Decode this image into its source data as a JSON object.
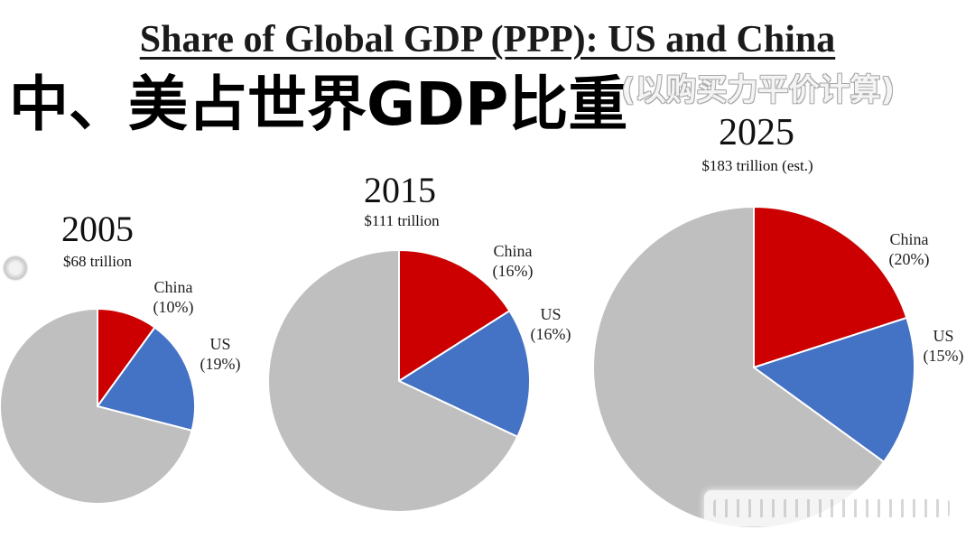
{
  "title": "Share of Global GDP (PPP): US and China",
  "overlay": {
    "heading": "中、美占世界GDP比重",
    "note": "(以购买力平价计算)"
  },
  "chart_data": [
    {
      "type": "pie",
      "title": "2005",
      "subtitle": "$68 trillion",
      "slices": [
        {
          "name": "China",
          "label": "(10%)",
          "value": 10,
          "color": "#cc0000"
        },
        {
          "name": "US",
          "label": "(19%)",
          "value": 19,
          "color": "#4472c4"
        },
        {
          "value": 71,
          "color": "#bfbfbf"
        }
      ]
    },
    {
      "type": "pie",
      "title": "2015",
      "subtitle": "$111 trillion",
      "slices": [
        {
          "name": "China",
          "label": "(16%)",
          "value": 16,
          "color": "#cc0000"
        },
        {
          "name": "US",
          "label": "(16%)",
          "value": 16,
          "color": "#4472c4"
        },
        {
          "value": 68,
          "color": "#bfbfbf"
        }
      ]
    },
    {
      "type": "pie",
      "title": "2025",
      "subtitle": "$183 trillion (est.)",
      "slices": [
        {
          "name": "China",
          "label": "(20%)",
          "value": 20,
          "color": "#cc0000"
        },
        {
          "name": "US",
          "label": "(15%)",
          "value": 15,
          "color": "#4472c4"
        },
        {
          "value": 65,
          "color": "#bfbfbf"
        }
      ]
    }
  ]
}
